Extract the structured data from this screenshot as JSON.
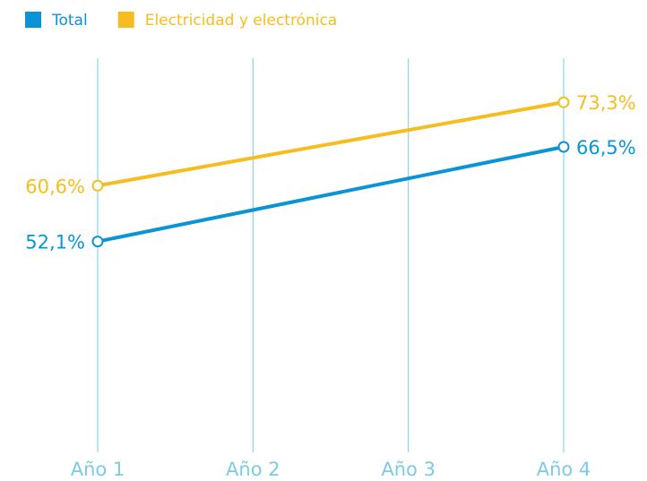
{
  "chart_data": {
    "type": "line",
    "x": [
      1,
      4
    ],
    "xlim": [
      1,
      4
    ],
    "xticks": [
      {
        "value": 1,
        "label": "Año 1"
      },
      {
        "value": 2,
        "label": "Año 2"
      },
      {
        "value": 3,
        "label": "Año 3"
      },
      {
        "value": 4,
        "label": "Año 4"
      }
    ],
    "ylim": [
      20,
      80
    ],
    "series": [
      {
        "name": "Total",
        "color": "#0a94d6",
        "values": [
          52.1,
          66.5
        ],
        "value_labels": [
          "52,1%",
          "66,5%"
        ]
      },
      {
        "name": "Electricidad y electrónica",
        "color": "#f5bd1f",
        "values": [
          60.6,
          73.3
        ],
        "value_labels": [
          "60,6%",
          "73,3%"
        ]
      }
    ],
    "grid": true,
    "legend": "top-left"
  }
}
